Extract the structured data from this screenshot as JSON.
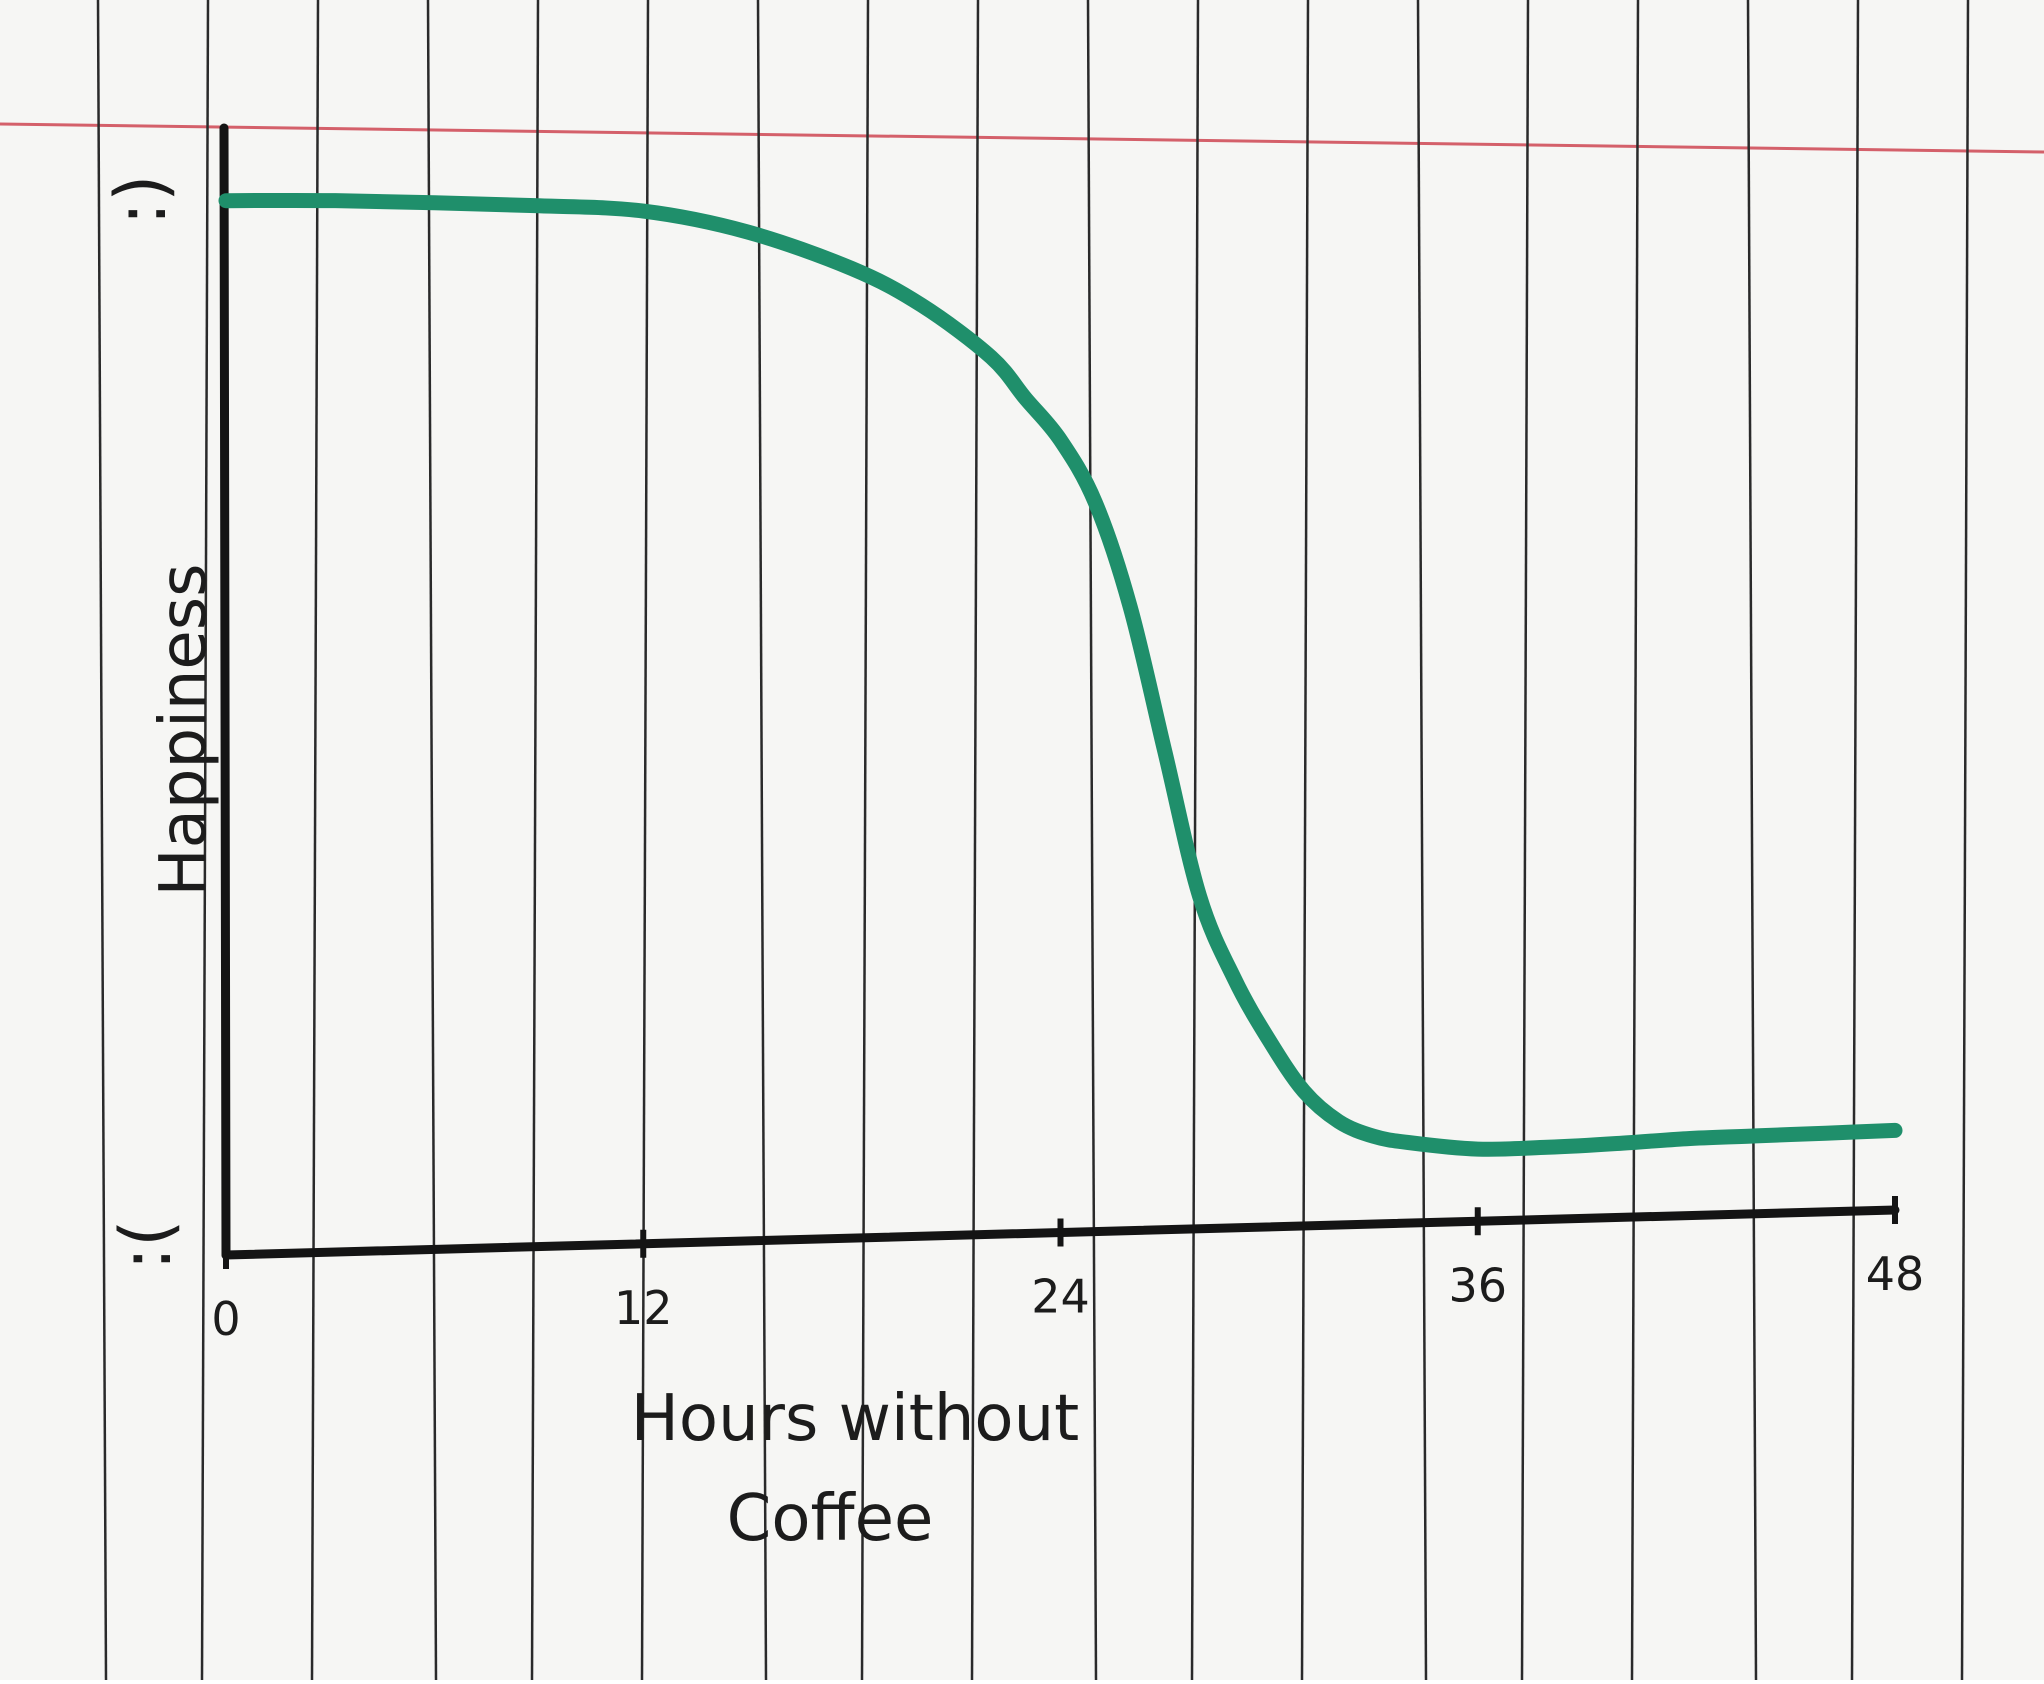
{
  "chart_data": {
    "type": "line",
    "title": "",
    "xlabel": "Hours without Coffee",
    "xlabel_lines": [
      "Hours without",
      "Coffee"
    ],
    "ylabel": "Happiness",
    "y_top_marker": ":)",
    "y_bottom_marker": ":(",
    "x": [
      0,
      3,
      6,
      9,
      12,
      15,
      18,
      20,
      22,
      23,
      24,
      25,
      26,
      27,
      28,
      29,
      30,
      31,
      32,
      33,
      34,
      36,
      38,
      40,
      42,
      44,
      46,
      48
    ],
    "xlim": [
      0,
      48
    ],
    "x_ticks": [
      0,
      12,
      24,
      36,
      48
    ],
    "x_tick_labels": [
      "0",
      "12",
      "24",
      "36",
      "48"
    ],
    "ylim": [
      0,
      10
    ],
    "series": [
      {
        "color": "#1f8f6b",
        "values": [
          9.9,
          9.9,
          9.88,
          9.85,
          9.8,
          9.6,
          9.25,
          8.9,
          8.4,
          8.0,
          7.6,
          7.0,
          6.0,
          4.6,
          3.2,
          2.4,
          1.8,
          1.3,
          1.0,
          0.85,
          0.78,
          0.7,
          0.7,
          0.72,
          0.75,
          0.76,
          0.77,
          0.78
        ]
      }
    ],
    "grid": false,
    "legend": "none"
  }
}
